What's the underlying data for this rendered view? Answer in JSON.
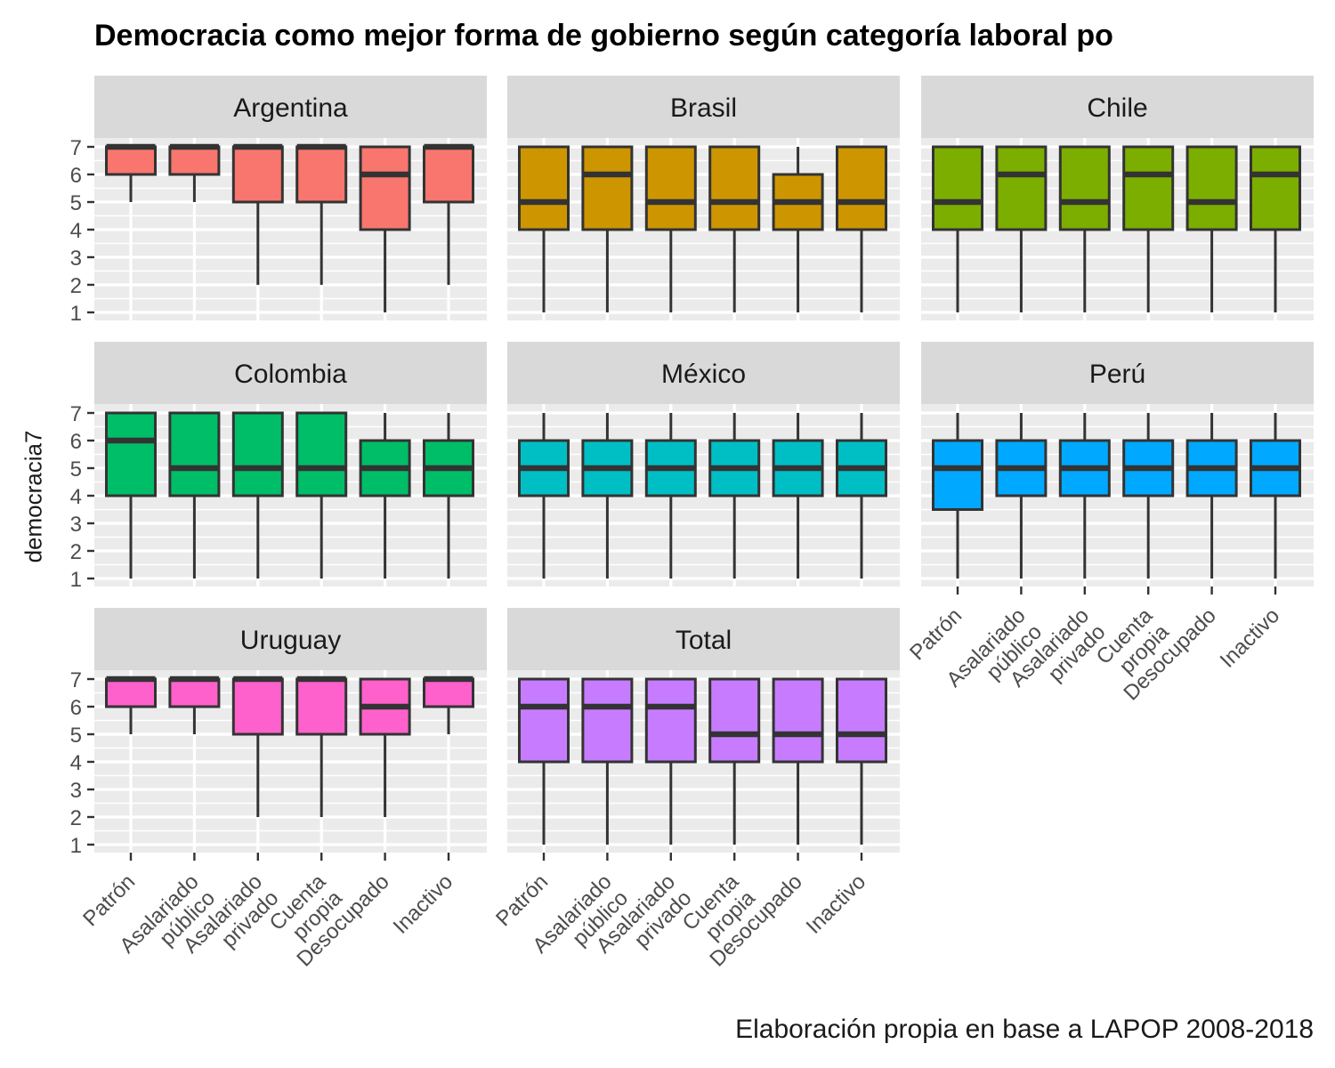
{
  "title": "Democracia como mejor forma de gobierno según categoría laboral po",
  "caption": "Elaboración propia en base a LAPOP 2008-2018",
  "colors": {
    "panel_bg": "#ebebeb",
    "strip_bg": "#d9d9d9",
    "gridline": "#ffffff",
    "box_line": "#333333"
  },
  "chart_data": {
    "type": "boxplot",
    "ylabel": "democracia7",
    "xlabel": "",
    "ylim": [
      1,
      7
    ],
    "y_ticks": [
      1,
      2,
      3,
      4,
      5,
      6,
      7
    ],
    "categories": [
      "Patrón",
      "Asalariado público",
      "Asalariado privado",
      "Cuenta propia",
      "Desocupado",
      "Inactivo"
    ],
    "category_labels": [
      [
        "Patrón"
      ],
      [
        "Asalariado",
        "público"
      ],
      [
        "Asalariado",
        "privado"
      ],
      [
        "Cuenta",
        "propia"
      ],
      [
        "Desocupado"
      ],
      [
        "Inactivo"
      ]
    ],
    "facets": [
      {
        "name": "Argentina",
        "color": "#F8766D",
        "boxes": [
          {
            "lower": 5,
            "q1": 6,
            "median": 7,
            "q3": 7,
            "upper": 7
          },
          {
            "lower": 5,
            "q1": 6,
            "median": 7,
            "q3": 7,
            "upper": 7
          },
          {
            "lower": 2,
            "q1": 5,
            "median": 7,
            "q3": 7,
            "upper": 7
          },
          {
            "lower": 2,
            "q1": 5,
            "median": 7,
            "q3": 7,
            "upper": 7
          },
          {
            "lower": 1,
            "q1": 4,
            "median": 6,
            "q3": 7,
            "upper": 7
          },
          {
            "lower": 2,
            "q1": 5,
            "median": 7,
            "q3": 7,
            "upper": 7
          }
        ]
      },
      {
        "name": "Brasil",
        "color": "#CD9600",
        "boxes": [
          {
            "lower": 1,
            "q1": 4,
            "median": 5,
            "q3": 7,
            "upper": 7
          },
          {
            "lower": 1,
            "q1": 4,
            "median": 6,
            "q3": 7,
            "upper": 7
          },
          {
            "lower": 1,
            "q1": 4,
            "median": 5,
            "q3": 7,
            "upper": 7
          },
          {
            "lower": 1,
            "q1": 4,
            "median": 5,
            "q3": 7,
            "upper": 7
          },
          {
            "lower": 1,
            "q1": 4,
            "median": 5,
            "q3": 6,
            "upper": 7
          },
          {
            "lower": 1,
            "q1": 4,
            "median": 5,
            "q3": 7,
            "upper": 7
          }
        ]
      },
      {
        "name": "Chile",
        "color": "#7CAE00",
        "boxes": [
          {
            "lower": 1,
            "q1": 4,
            "median": 5,
            "q3": 7,
            "upper": 7
          },
          {
            "lower": 1,
            "q1": 4,
            "median": 6,
            "q3": 7,
            "upper": 7
          },
          {
            "lower": 1,
            "q1": 4,
            "median": 5,
            "q3": 7,
            "upper": 7
          },
          {
            "lower": 1,
            "q1": 4,
            "median": 6,
            "q3": 7,
            "upper": 7
          },
          {
            "lower": 1,
            "q1": 4,
            "median": 5,
            "q3": 7,
            "upper": 7
          },
          {
            "lower": 1,
            "q1": 4,
            "median": 6,
            "q3": 7,
            "upper": 7
          }
        ]
      },
      {
        "name": "Colombia",
        "color": "#00BE67",
        "boxes": [
          {
            "lower": 1,
            "q1": 4,
            "median": 6,
            "q3": 7,
            "upper": 7
          },
          {
            "lower": 1,
            "q1": 4,
            "median": 5,
            "q3": 7,
            "upper": 7
          },
          {
            "lower": 1,
            "q1": 4,
            "median": 5,
            "q3": 7,
            "upper": 7
          },
          {
            "lower": 1,
            "q1": 4,
            "median": 5,
            "q3": 7,
            "upper": 7
          },
          {
            "lower": 1,
            "q1": 4,
            "median": 5,
            "q3": 6,
            "upper": 7
          },
          {
            "lower": 1,
            "q1": 4,
            "median": 5,
            "q3": 6,
            "upper": 7
          }
        ]
      },
      {
        "name": "México",
        "color": "#00BFC4",
        "boxes": [
          {
            "lower": 1,
            "q1": 4,
            "median": 5,
            "q3": 6,
            "upper": 7
          },
          {
            "lower": 1,
            "q1": 4,
            "median": 5,
            "q3": 6,
            "upper": 7
          },
          {
            "lower": 1,
            "q1": 4,
            "median": 5,
            "q3": 6,
            "upper": 7
          },
          {
            "lower": 1,
            "q1": 4,
            "median": 5,
            "q3": 6,
            "upper": 7
          },
          {
            "lower": 1,
            "q1": 4,
            "median": 5,
            "q3": 6,
            "upper": 7
          },
          {
            "lower": 1,
            "q1": 4,
            "median": 5,
            "q3": 6,
            "upper": 7
          }
        ]
      },
      {
        "name": "Perú",
        "color": "#00A9FF",
        "boxes": [
          {
            "lower": 1,
            "q1": 3.5,
            "median": 5,
            "q3": 6,
            "upper": 7
          },
          {
            "lower": 1,
            "q1": 4,
            "median": 5,
            "q3": 6,
            "upper": 7
          },
          {
            "lower": 1,
            "q1": 4,
            "median": 5,
            "q3": 6,
            "upper": 7
          },
          {
            "lower": 1,
            "q1": 4,
            "median": 5,
            "q3": 6,
            "upper": 7
          },
          {
            "lower": 1,
            "q1": 4,
            "median": 5,
            "q3": 6,
            "upper": 7
          },
          {
            "lower": 1,
            "q1": 4,
            "median": 5,
            "q3": 6,
            "upper": 7
          }
        ]
      },
      {
        "name": "Uruguay",
        "color": "#FF61CC",
        "boxes": [
          {
            "lower": 5,
            "q1": 6,
            "median": 7,
            "q3": 7,
            "upper": 7
          },
          {
            "lower": 5,
            "q1": 6,
            "median": 7,
            "q3": 7,
            "upper": 7
          },
          {
            "lower": 2,
            "q1": 5,
            "median": 7,
            "q3": 7,
            "upper": 7
          },
          {
            "lower": 2,
            "q1": 5,
            "median": 7,
            "q3": 7,
            "upper": 7
          },
          {
            "lower": 2,
            "q1": 5,
            "median": 6,
            "q3": 7,
            "upper": 7
          },
          {
            "lower": 5,
            "q1": 6,
            "median": 7,
            "q3": 7,
            "upper": 7
          }
        ]
      },
      {
        "name": "Total",
        "color": "#C77CFF",
        "boxes": [
          {
            "lower": 1,
            "q1": 4,
            "median": 6,
            "q3": 7,
            "upper": 7
          },
          {
            "lower": 1,
            "q1": 4,
            "median": 6,
            "q3": 7,
            "upper": 7
          },
          {
            "lower": 1,
            "q1": 4,
            "median": 6,
            "q3": 7,
            "upper": 7
          },
          {
            "lower": 1,
            "q1": 4,
            "median": 5,
            "q3": 7,
            "upper": 7
          },
          {
            "lower": 1,
            "q1": 4,
            "median": 5,
            "q3": 7,
            "upper": 7
          },
          {
            "lower": 1,
            "q1": 4,
            "median": 5,
            "q3": 7,
            "upper": 7
          }
        ]
      }
    ],
    "grid": true,
    "legend": "none"
  }
}
